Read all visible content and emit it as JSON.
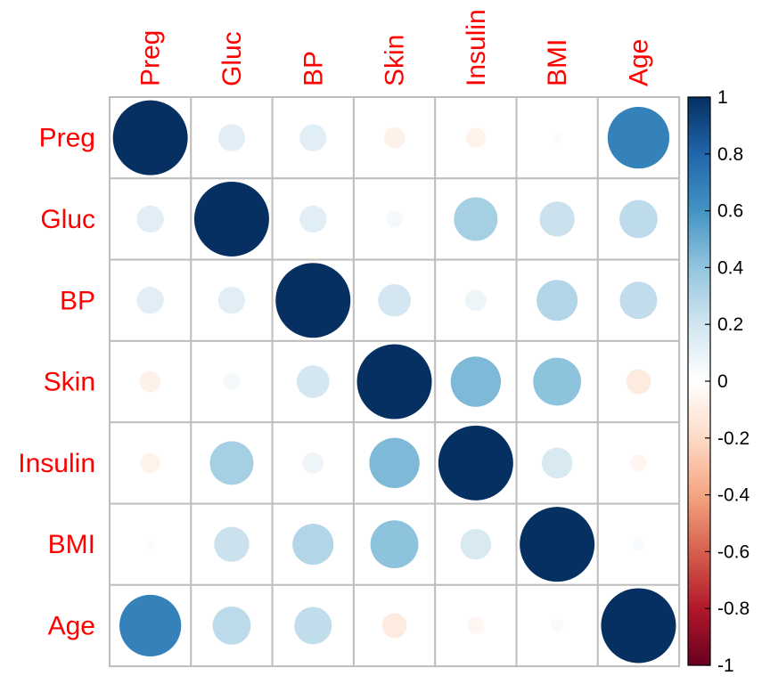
{
  "chart_data": {
    "type": "heatmap",
    "variables": [
      "Preg",
      "Gluc",
      "BP",
      "Skin",
      "Insulin",
      "BMI",
      "Age"
    ],
    "matrix": [
      [
        1.0,
        0.13,
        0.13,
        -0.08,
        -0.07,
        0.02,
        0.68
      ],
      [
        0.13,
        1.0,
        0.13,
        0.05,
        0.34,
        0.22,
        0.26
      ],
      [
        0.13,
        0.13,
        1.0,
        0.19,
        0.08,
        0.3,
        0.25
      ],
      [
        -0.08,
        0.05,
        0.19,
        1.0,
        0.45,
        0.41,
        -0.11
      ],
      [
        -0.07,
        0.34,
        0.08,
        0.45,
        1.0,
        0.17,
        -0.05
      ],
      [
        0.02,
        0.22,
        0.3,
        0.41,
        0.17,
        1.0,
        0.03
      ],
      [
        0.68,
        0.26,
        0.25,
        -0.11,
        -0.05,
        0.03,
        1.0
      ]
    ],
    "label_color": "#ff0000",
    "grid_color": "#bebebe",
    "colorbar": {
      "min": -1,
      "max": 1,
      "ticks": [
        -1,
        -0.8,
        -0.6,
        -0.4,
        -0.2,
        0,
        0.2,
        0.4,
        0.6,
        0.8,
        1
      ],
      "tick_labels": [
        "-1",
        "-0.8",
        "-0.6",
        "-0.4",
        "-0.2",
        "0",
        "0.2",
        "0.4",
        "0.6",
        "0.8",
        "1"
      ],
      "palette": [
        "#67001F",
        "#B2182B",
        "#D6604D",
        "#F4A582",
        "#FDDBC7",
        "#FFFFFF",
        "#D1E5F0",
        "#92C5DE",
        "#4393C3",
        "#2166AC",
        "#053061"
      ]
    }
  }
}
